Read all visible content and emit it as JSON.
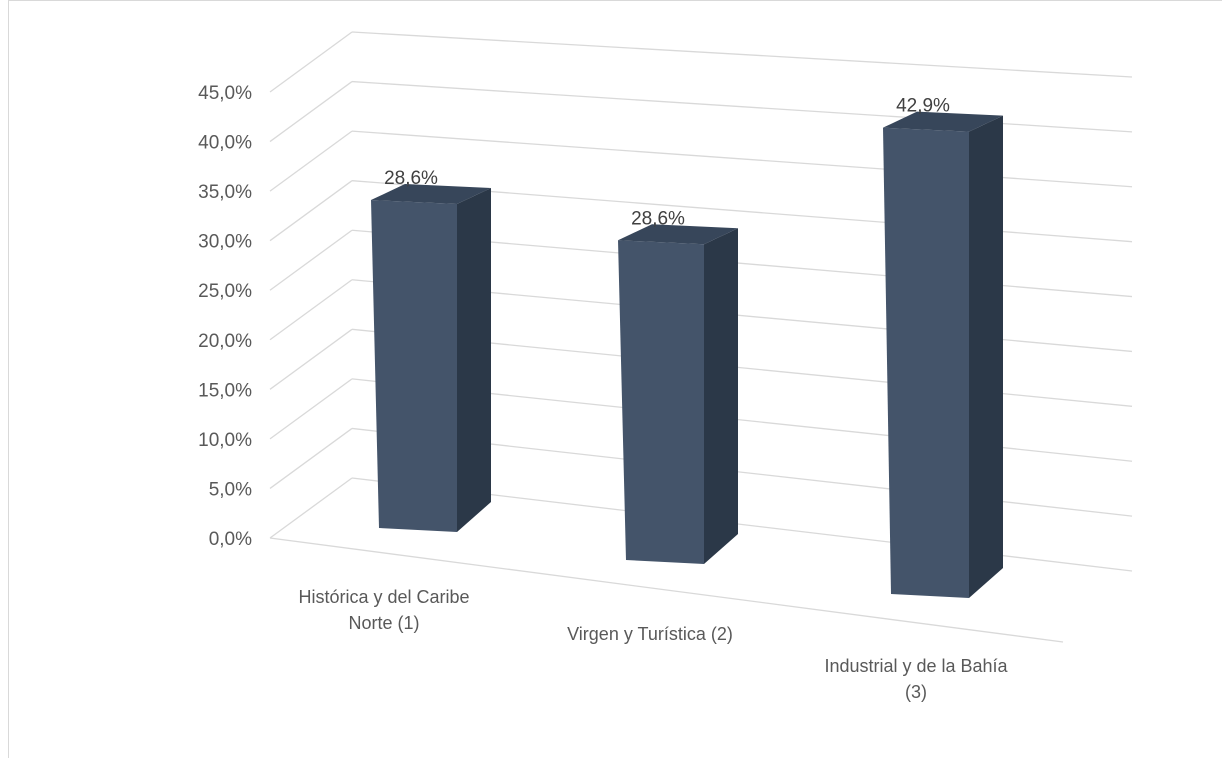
{
  "chart_data": {
    "type": "bar",
    "style": "3d-column",
    "title": "",
    "xlabel": "",
    "ylabel": "",
    "categories": [
      "Histórica y del Caribe Norte (1)",
      "Virgen y Turística (2)",
      "Industrial y de la Bahía (3)"
    ],
    "category_label_lines": [
      [
        "Histórica y del Caribe",
        "Norte (1)"
      ],
      [
        "Virgen y Turística (2)"
      ],
      [
        "Industrial y de la Bahía",
        "(3)"
      ]
    ],
    "values": [
      28.6,
      28.6,
      42.9
    ],
    "data_labels": [
      "28,6%",
      "28,6%",
      "42,9%"
    ],
    "ylim": [
      0,
      45
    ],
    "yticks": [
      0,
      5,
      10,
      15,
      20,
      25,
      30,
      35,
      40,
      45
    ],
    "ytick_labels": [
      "0,0%",
      "5,0%",
      "10,0%",
      "15,0%",
      "20,0%",
      "25,0%",
      "30,0%",
      "35,0%",
      "40,0%",
      "45,0%"
    ],
    "grid": true,
    "legend": "none",
    "colors": {
      "bar_front": "#44546a",
      "bar_side": "#2b3848",
      "bar_top": "#37465a",
      "gridline": "#d9d9d9",
      "text": "#595959"
    }
  }
}
